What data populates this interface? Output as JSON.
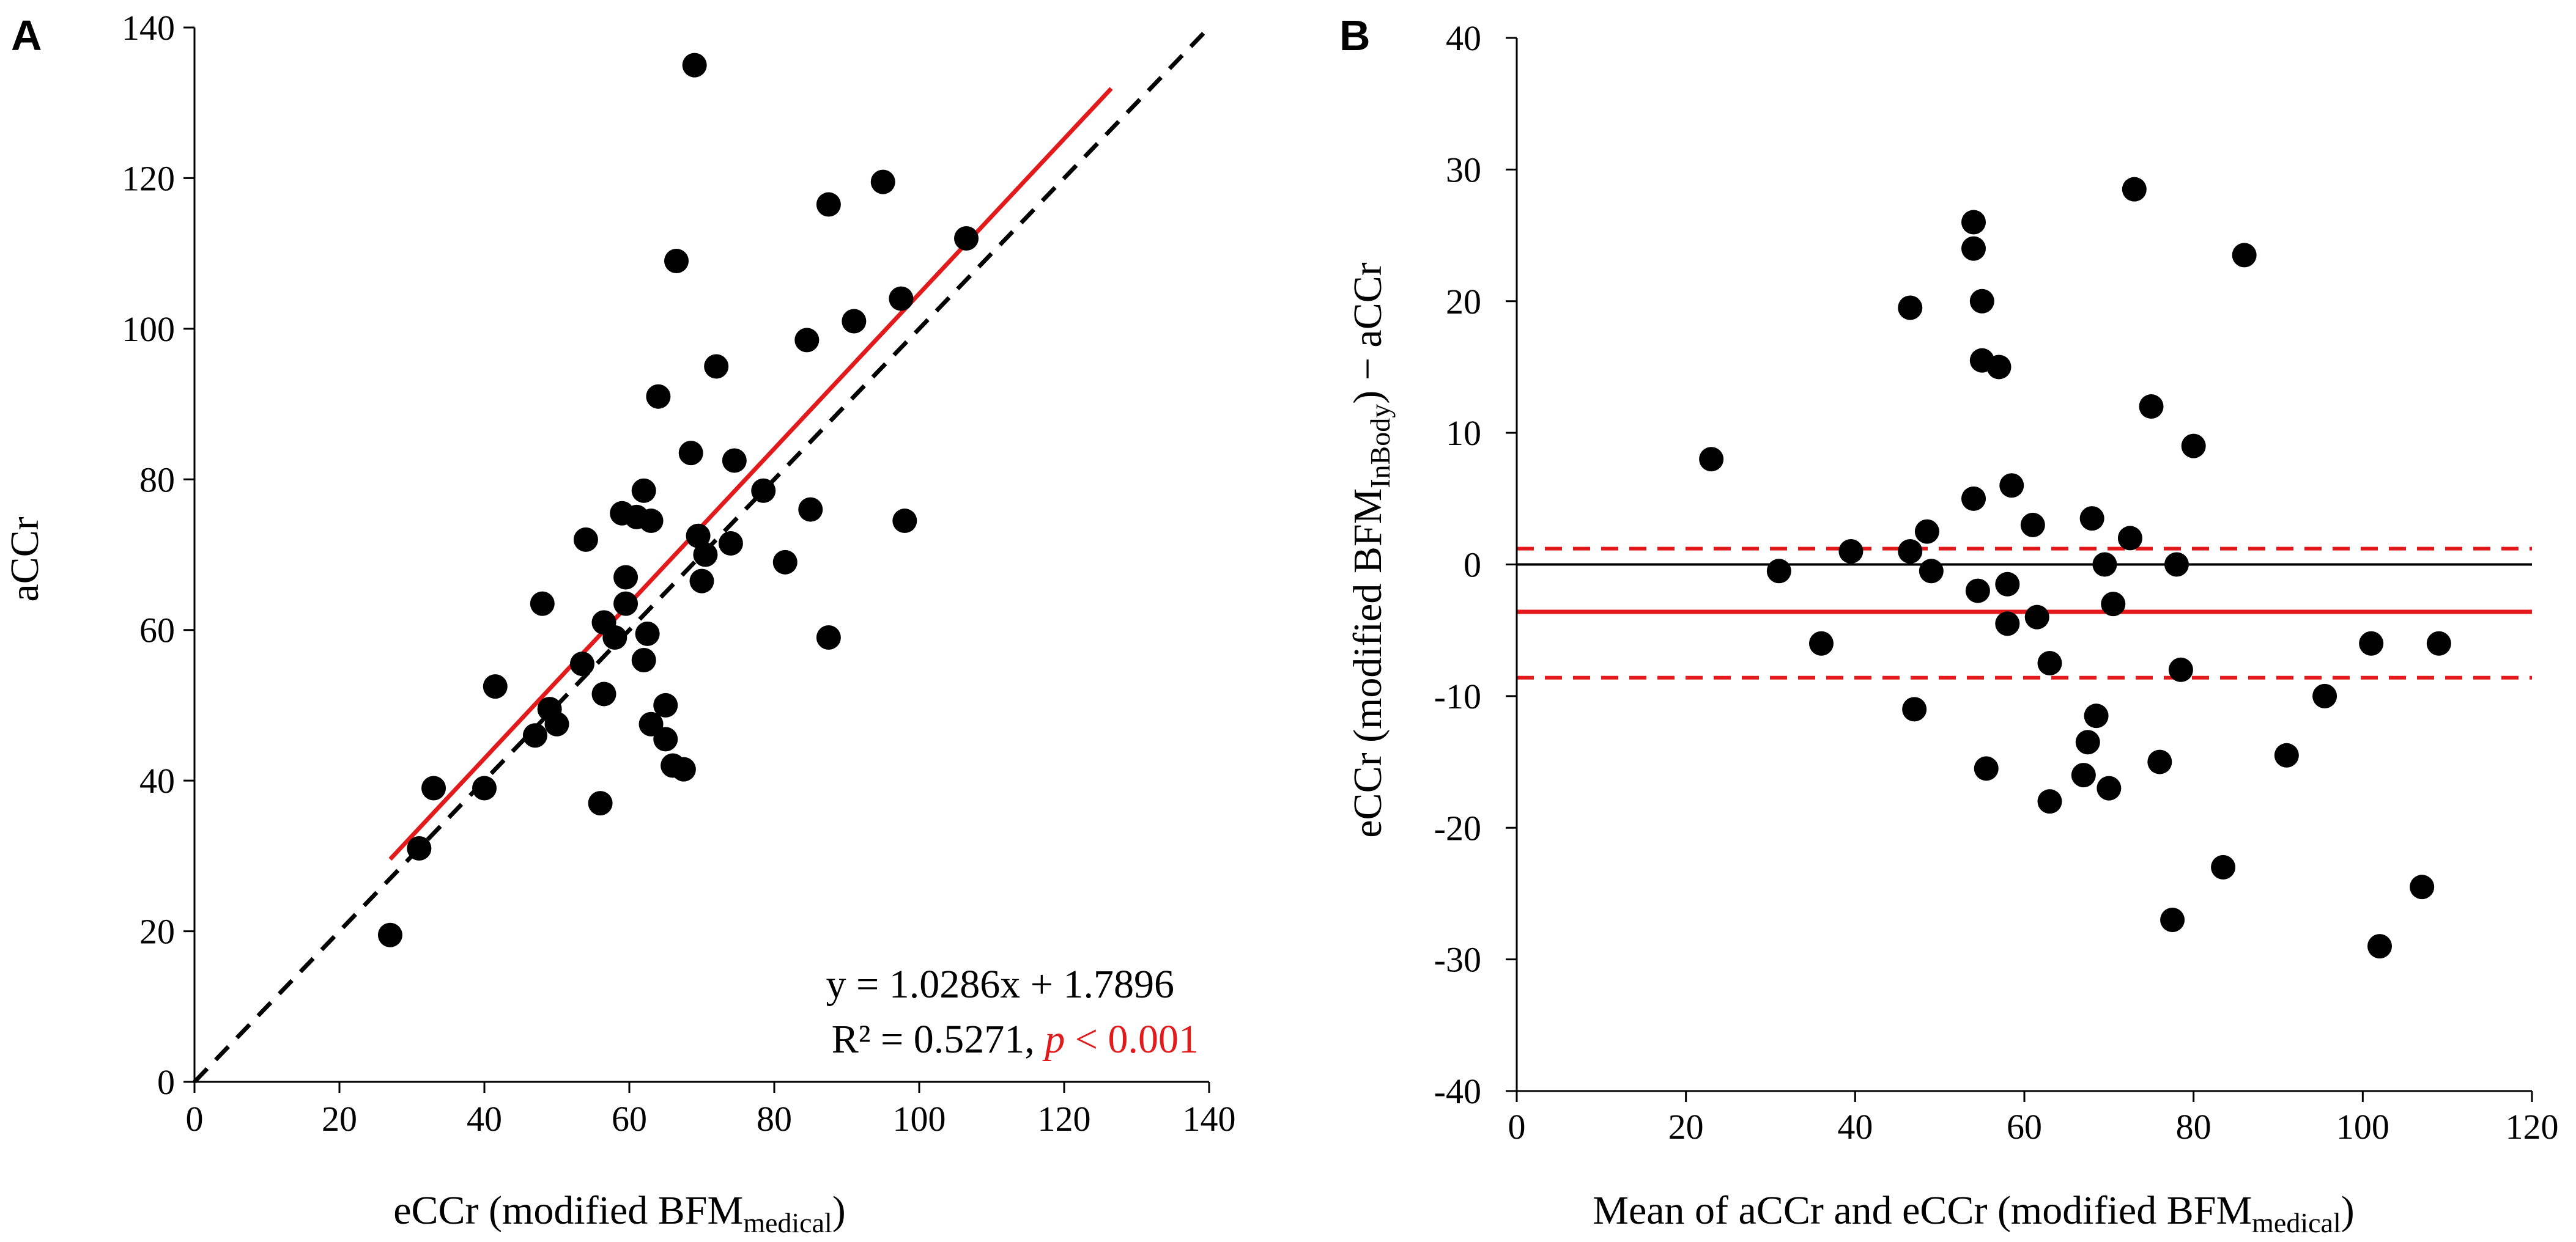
{
  "chart_data": [
    {
      "panel": "A",
      "type": "scatter",
      "xlabel": "eCCr (modified BFM",
      "xlabel_sub": "medical",
      "xlabel_end": ")",
      "ylabel": "aCCr",
      "xlim": [
        0,
        140
      ],
      "ylim": [
        0,
        140
      ],
      "xticks": [
        0,
        20,
        40,
        60,
        80,
        100,
        120,
        140
      ],
      "yticks": [
        0,
        20,
        40,
        60,
        80,
        100,
        120,
        140
      ],
      "points": [
        [
          27,
          19.5
        ],
        [
          31,
          31
        ],
        [
          33,
          39
        ],
        [
          40,
          39
        ],
        [
          41.5,
          52.5
        ],
        [
          47,
          46
        ],
        [
          48,
          63.5
        ],
        [
          49,
          49.5
        ],
        [
          50,
          47.5
        ],
        [
          53.5,
          55.5
        ],
        [
          54,
          72
        ],
        [
          56,
          37
        ],
        [
          56.5,
          51.5
        ],
        [
          56.5,
          61
        ],
        [
          58,
          59
        ],
        [
          59,
          75.5
        ],
        [
          59.5,
          67
        ],
        [
          59.5,
          63.5
        ],
        [
          61,
          75
        ],
        [
          62,
          78.5
        ],
        [
          62,
          56
        ],
        [
          62.5,
          59.5
        ],
        [
          63,
          47.5
        ],
        [
          63,
          74.5
        ],
        [
          64,
          91
        ],
        [
          65,
          45.5
        ],
        [
          65,
          50
        ],
        [
          66,
          42
        ],
        [
          66.5,
          109
        ],
        [
          67.5,
          41.5
        ],
        [
          68.5,
          83.5
        ],
        [
          69,
          135
        ],
        [
          69.5,
          72.5
        ],
        [
          70,
          66.5
        ],
        [
          70.5,
          70
        ],
        [
          72,
          95
        ],
        [
          74,
          71.5
        ],
        [
          74.5,
          82.5
        ],
        [
          78.5,
          78.5
        ],
        [
          81.5,
          69
        ],
        [
          84.5,
          98.5
        ],
        [
          85,
          76
        ],
        [
          87.5,
          116.5
        ],
        [
          87.5,
          59
        ],
        [
          91,
          101
        ],
        [
          95,
          119.5
        ],
        [
          97.5,
          104
        ],
        [
          98,
          74.5
        ],
        [
          106.5,
          112
        ]
      ],
      "regression": {
        "slope": 1.0286,
        "intercept": 1.7896,
        "x_range": [
          27,
          126.5
        ]
      },
      "identity_line": {
        "x_range": [
          0,
          140
        ]
      },
      "equation_text": "y = 1.0286x + 1.7896",
      "r2_text": "R² = 0.5271, ",
      "p_text": "p",
      "p_rest": " < 0.001",
      "colors": {
        "regression": "#e31a1c",
        "points": "#000000",
        "pvalue": "#e31a1c"
      }
    },
    {
      "panel": "B",
      "type": "scatter",
      "xlabel": "Mean of aCCr and eCCr (modified BFM",
      "xlabel_sub": "medical",
      "xlabel_end": ")",
      "ylabel": "eCCr (modified BFM",
      "ylabel_sub": "InBody",
      "ylabel_end": ") − aCCr",
      "xlim": [
        0,
        120
      ],
      "ylim": [
        -40,
        40
      ],
      "xticks": [
        0,
        20,
        40,
        60,
        80,
        100,
        120
      ],
      "yticks": [
        -40,
        -30,
        -20,
        -10,
        0,
        10,
        20,
        30,
        40
      ],
      "points": [
        [
          23,
          8
        ],
        [
          31,
          -0.5
        ],
        [
          36,
          -6
        ],
        [
          39.5,
          1
        ],
        [
          46.5,
          1
        ],
        [
          46.5,
          19.5
        ],
        [
          47,
          -11
        ],
        [
          48.5,
          2.5
        ],
        [
          49,
          -0.5
        ],
        [
          54,
          24
        ],
        [
          54,
          26
        ],
        [
          54,
          5
        ],
        [
          54.5,
          -2
        ],
        [
          55,
          15.5
        ],
        [
          55,
          20
        ],
        [
          55.5,
          -15.5
        ],
        [
          57,
          15
        ],
        [
          58,
          -1.5
        ],
        [
          58,
          -4.5
        ],
        [
          58.5,
          6
        ],
        [
          61,
          3
        ],
        [
          61.5,
          -4
        ],
        [
          63,
          -7.5
        ],
        [
          63,
          -18
        ],
        [
          67,
          -16
        ],
        [
          67.5,
          -13.5
        ],
        [
          68,
          3.5
        ],
        [
          68.5,
          -11.5
        ],
        [
          69.5,
          0
        ],
        [
          70,
          -17
        ],
        [
          70.5,
          -3
        ],
        [
          72.5,
          2
        ],
        [
          73,
          28.5
        ],
        [
          75,
          12
        ],
        [
          76,
          -15
        ],
        [
          77.5,
          -27
        ],
        [
          78,
          0
        ],
        [
          78.5,
          -8
        ],
        [
          80,
          9
        ],
        [
          83.5,
          -23
        ],
        [
          86,
          23.5
        ],
        [
          91,
          -14.5
        ],
        [
          95.5,
          -10
        ],
        [
          101,
          -6
        ],
        [
          102,
          -29
        ],
        [
          107,
          -24.5
        ],
        [
          109,
          -6
        ]
      ],
      "zero_line": 0,
      "mean_bias": -3.6,
      "loa_upper": 1.2,
      "loa_lower": -8.6,
      "colors": {
        "mean_line": "#e31a1c",
        "loa": "#e31a1c",
        "zero": "#000000",
        "points": "#000000"
      }
    }
  ]
}
